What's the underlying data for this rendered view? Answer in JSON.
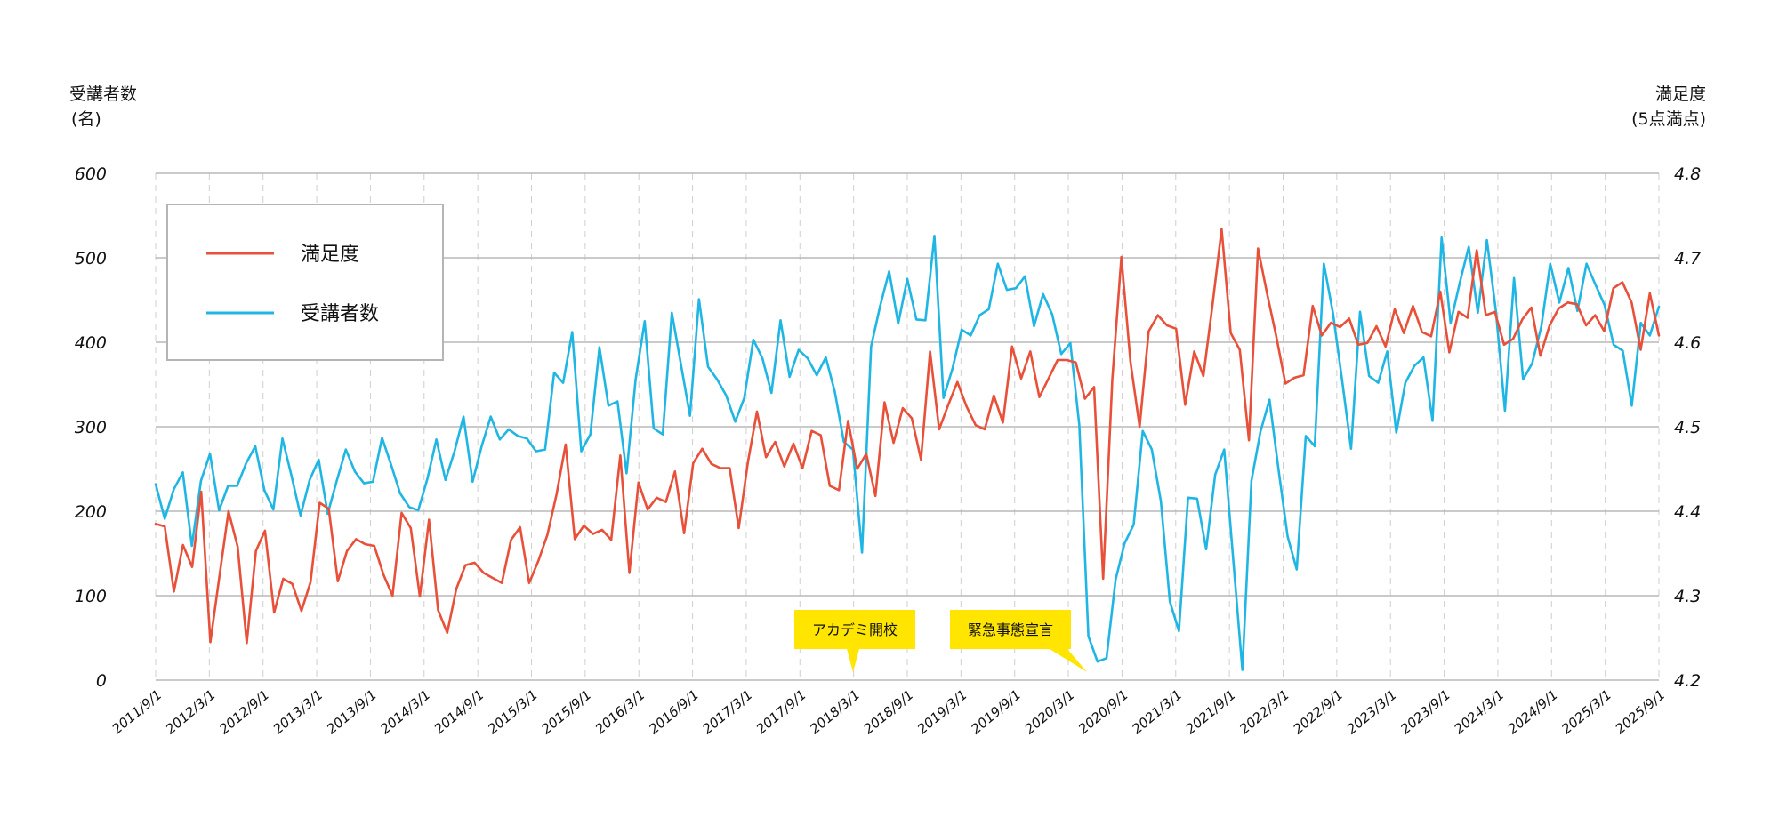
{
  "chart_data": {
    "type": "line",
    "left_axis": {
      "title_line1": "受講者数",
      "title_line2": "(名)",
      "ylim": [
        0,
        600
      ],
      "ticks": [
        0,
        100,
        200,
        300,
        400,
        500,
        600
      ]
    },
    "right_axis": {
      "title_line1": "満足度",
      "title_line2": "(5点満点)",
      "ylim": [
        4.2,
        4.8
      ],
      "ticks": [
        "4.2",
        "4.3",
        "4.4",
        "4.5",
        "4.6",
        "4.7",
        "4.8"
      ]
    },
    "x_tick_labels": [
      "2011/9/1",
      "2012/3/1",
      "2012/9/1",
      "2013/3/1",
      "2013/9/1",
      "2014/3/1",
      "2014/9/1",
      "2015/3/1",
      "2015/9/1",
      "2016/3/1",
      "2016/9/1",
      "2017/3/1",
      "2017/9/1",
      "2018/3/1",
      "2018/9/1",
      "2019/3/1",
      "2019/9/1",
      "2020/3/1",
      "2020/9/1",
      "2021/3/1",
      "2021/9/1",
      "2022/3/1",
      "2022/9/1",
      "2023/3/1",
      "2023/9/1",
      "2024/3/1",
      "2024/9/1",
      "2025/3/1",
      "2025/9/1"
    ],
    "x_range_months": [
      0,
      168
    ],
    "grid": true,
    "legend": {
      "position": "top-left",
      "entries": [
        "満足度",
        "受講者数"
      ]
    },
    "colors": {
      "satisfaction": "#e8503a",
      "attendees": "#20b6e4",
      "annotation_bg": "#ffe500",
      "grid": "#b8b8b8"
    },
    "annotations": [
      {
        "label": "アカデミ開校",
        "x_month": 78
      },
      {
        "label": "緊急事態宣言",
        "x_month": 103
      }
    ],
    "series": [
      {
        "name": "満足度",
        "axis": "right",
        "color": "#e8503a",
        "values": [
          4.385,
          4.382,
          4.305,
          4.36,
          4.334,
          4.423,
          4.245,
          4.323,
          4.4,
          4.358,
          4.244,
          4.353,
          4.377,
          4.28,
          4.32,
          4.314,
          4.282,
          4.316,
          4.41,
          4.403,
          4.317,
          4.353,
          4.367,
          4.361,
          4.359,
          4.325,
          4.3,
          4.398,
          4.38,
          4.299,
          4.39,
          4.283,
          4.256,
          4.308,
          4.336,
          4.339,
          4.327,
          4.321,
          4.315,
          4.366,
          4.381,
          4.315,
          4.341,
          4.372,
          4.42,
          4.479,
          4.367,
          4.383,
          4.373,
          4.378,
          4.366,
          4.466,
          4.327,
          4.434,
          4.402,
          4.416,
          4.411,
          4.447,
          4.374,
          4.457,
          4.474,
          4.456,
          4.451,
          4.451,
          4.38,
          4.458,
          4.518,
          4.464,
          4.482,
          4.453,
          4.48,
          4.451,
          4.495,
          4.49,
          4.43,
          4.425,
          4.507,
          4.45,
          4.468,
          4.418,
          4.529,
          4.481,
          4.522,
          4.51,
          4.461,
          4.589,
          4.497,
          4.526,
          4.553,
          4.524,
          4.502,
          4.497,
          4.537,
          4.505,
          4.595,
          4.557,
          4.589,
          4.535,
          4.557,
          4.579,
          4.579,
          4.576,
          4.533,
          4.547,
          4.32,
          4.556,
          4.701,
          4.577,
          4.5,
          4.613,
          4.632,
          4.62,
          4.616,
          4.526,
          4.589,
          4.56,
          4.644,
          4.734,
          4.611,
          4.591,
          4.484,
          4.711,
          4.657,
          4.607,
          4.551,
          4.558,
          4.561,
          4.643,
          4.608,
          4.623,
          4.618,
          4.628,
          4.597,
          4.599,
          4.619,
          4.595,
          4.639,
          4.611,
          4.643,
          4.612,
          4.607,
          4.66,
          4.588,
          4.636,
          4.629,
          4.709,
          4.632,
          4.636,
          4.597,
          4.604,
          4.627,
          4.641,
          4.584,
          4.62,
          4.64,
          4.647,
          4.645,
          4.62,
          4.632,
          4.613,
          4.664,
          4.671,
          4.647,
          4.591,
          4.658,
          4.608
        ]
      },
      {
        "name": "受講者数",
        "axis": "left",
        "color": "#20b6e4",
        "values": [
          232,
          191,
          226,
          246,
          159,
          236,
          268,
          201,
          230,
          230,
          257,
          277,
          225,
          202,
          286,
          242,
          195,
          237,
          261,
          197,
          236,
          273,
          247,
          233,
          235,
          287,
          255,
          221,
          205,
          201,
          238,
          285,
          237,
          271,
          312,
          235,
          277,
          312,
          285,
          297,
          289,
          286,
          271,
          273,
          364,
          352,
          412,
          271,
          291,
          394,
          325,
          330,
          245,
          356,
          425,
          298,
          291,
          435,
          374,
          313,
          451,
          371,
          356,
          337,
          306,
          334,
          403,
          381,
          340,
          426,
          359,
          391,
          381,
          361,
          382,
          341,
          282,
          273,
          151,
          395,
          443,
          484,
          422,
          475,
          427,
          426,
          526,
          334,
          369,
          415,
          408,
          432,
          439,
          493,
          462,
          464,
          478,
          419,
          457,
          433,
          386,
          399,
          302,
          52,
          22,
          26,
          119,
          162,
          184,
          295,
          273,
          212,
          93,
          58,
          216,
          215,
          155,
          243,
          273,
          142,
          12,
          236,
          294,
          332,
          249,
          170,
          131,
          289,
          277,
          493,
          435,
          356,
          274,
          436,
          360,
          352,
          389,
          293,
          352,
          372,
          382,
          307,
          524,
          423,
          470,
          513,
          435,
          521,
          437,
          319,
          476,
          356,
          375,
          418,
          493,
          447,
          488,
          437,
          493,
          468,
          444,
          397,
          390,
          325,
          423,
          408,
          442
        ]
      }
    ]
  }
}
